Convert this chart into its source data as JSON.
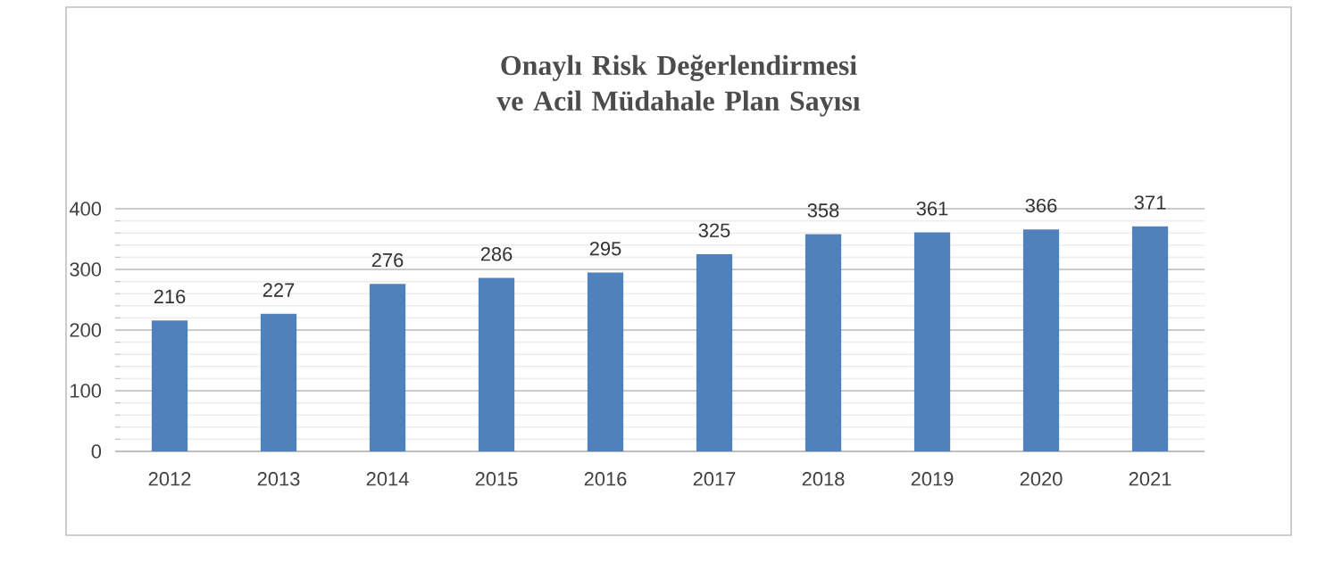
{
  "chart_data": {
    "type": "bar",
    "title": "Onaylı Risk Değerlendirmesi ve Acil Müdahale Plan Sayısı",
    "categories": [
      "2012",
      "2013",
      "2014",
      "2015",
      "2016",
      "2017",
      "2018",
      "2019",
      "2020",
      "2021"
    ],
    "values": [
      216,
      227,
      276,
      286,
      295,
      325,
      358,
      361,
      366,
      371
    ],
    "color": "#4f81bd",
    "ylim": [
      0,
      400
    ],
    "yticks": [
      0,
      100,
      200,
      300,
      400
    ],
    "grid": "y",
    "data_labels": true
  }
}
